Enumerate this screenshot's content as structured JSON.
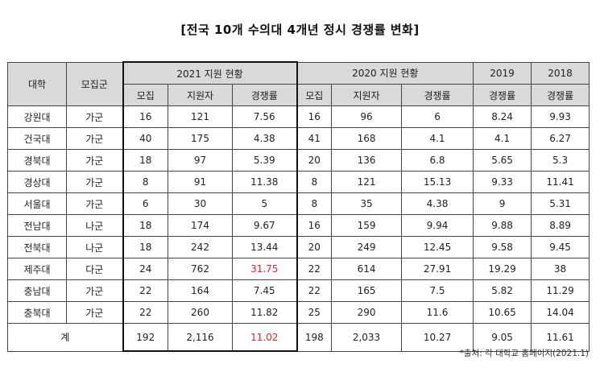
{
  "title": "[전국 10개 수의대 4개년 정시 경쟁률 변화]",
  "headers": {
    "university": "대학",
    "group": "모집군",
    "y2021": "2021 지원 현황",
    "y2020": "2020 지원 현황",
    "y2019": "2019",
    "y2018": "2018",
    "quota": "모집",
    "applicants": "지원자",
    "ratio": "경쟁률"
  },
  "highlight_color": "#e8202a",
  "rows": [
    {
      "univ": "강원대",
      "group": "가군",
      "q21": "16",
      "a21": "121",
      "r21": "7.56",
      "q20": "16",
      "a20": "96",
      "r20": "6",
      "r19": "8.24",
      "r18": "9.93"
    },
    {
      "univ": "건국대",
      "group": "가군",
      "q21": "40",
      "a21": "175",
      "r21": "4.38",
      "q20": "41",
      "a20": "168",
      "r20": "4.1",
      "r19": "4.1",
      "r18": "6.27"
    },
    {
      "univ": "경북대",
      "group": "가군",
      "q21": "18",
      "a21": "97",
      "r21": "5.39",
      "q20": "20",
      "a20": "136",
      "r20": "6.8",
      "r19": "5.65",
      "r18": "5.3"
    },
    {
      "univ": "경상대",
      "group": "가군",
      "q21": "8",
      "a21": "91",
      "r21": "11.38",
      "q20": "8",
      "a20": "121",
      "r20": "15.13",
      "r19": "9.33",
      "r18": "11.41"
    },
    {
      "univ": "서울대",
      "group": "가군",
      "q21": "6",
      "a21": "30",
      "r21": "5",
      "q20": "8",
      "a20": "35",
      "r20": "4.38",
      "r19": "9",
      "r18": "5.31"
    },
    {
      "univ": "전남대",
      "group": "나군",
      "q21": "18",
      "a21": "174",
      "r21": "9.67",
      "q20": "16",
      "a20": "159",
      "r20": "9.94",
      "r19": "9.88",
      "r18": "8.89"
    },
    {
      "univ": "전북대",
      "group": "나군",
      "q21": "18",
      "a21": "242",
      "r21": "13.44",
      "q20": "20",
      "a20": "249",
      "r20": "12.45",
      "r19": "9.58",
      "r18": "9.45"
    },
    {
      "univ": "제주대",
      "group": "다군",
      "q21": "24",
      "a21": "762",
      "r21": "31.75",
      "q20": "22",
      "a20": "614",
      "r20": "27.91",
      "r19": "19.29",
      "r18": "38",
      "highlight": true
    },
    {
      "univ": "충남대",
      "group": "가군",
      "q21": "22",
      "a21": "164",
      "r21": "7.45",
      "q20": "22",
      "a20": "165",
      "r20": "7.5",
      "r19": "5.82",
      "r18": "11.29"
    },
    {
      "univ": "충북대",
      "group": "가군",
      "q21": "22",
      "a21": "260",
      "r21": "11.82",
      "q20": "25",
      "a20": "290",
      "r20": "11.6",
      "r19": "10.65",
      "r18": "14.04"
    }
  ],
  "total": {
    "label": "계",
    "q21": "192",
    "a21": "2,116",
    "r21": "11.02",
    "q20": "198",
    "a20": "2,033",
    "r20": "10.27",
    "r19": "9.05",
    "r18": "11.61",
    "highlight": true
  },
  "source": "*출처: 각 대학교 홈페이지(2021.1)"
}
